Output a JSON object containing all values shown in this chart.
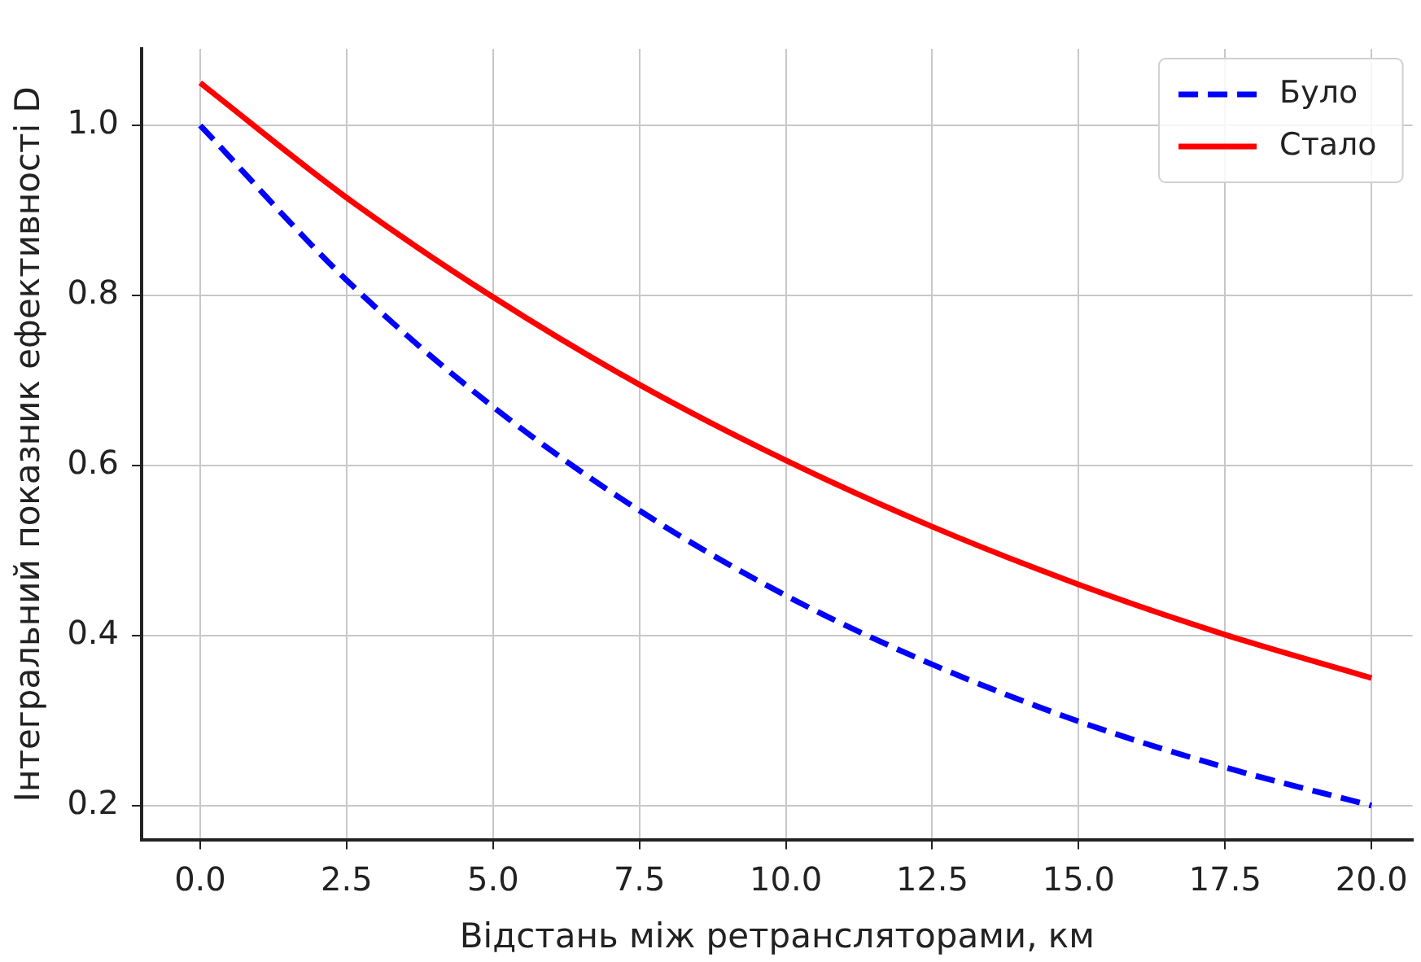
{
  "chart_data": {
    "type": "line",
    "xlabel": "Відстань між ретрансляторами, км",
    "ylabel": "Інтегральний показник ефективності D",
    "x": [
      0,
      2.5,
      5,
      7.5,
      10,
      12.5,
      15,
      17.5,
      20
    ],
    "series": [
      {
        "name": "Було",
        "color": "#0000ff",
        "line_style": "dashed",
        "values": [
          1.0,
          0.818,
          0.669,
          0.547,
          0.447,
          0.366,
          0.299,
          0.245,
          0.2
        ]
      },
      {
        "name": "Стало",
        "color": "#ff0000",
        "line_style": "solid",
        "values": [
          1.05,
          0.915,
          0.798,
          0.695,
          0.606,
          0.528,
          0.46,
          0.401,
          0.35
        ]
      }
    ],
    "xlim": [
      -1,
      20.7
    ],
    "xticks": [
      {
        "value": 0,
        "label": "0.0"
      },
      2.5,
      {
        "value": 5,
        "label": "5.0"
      },
      7.5,
      {
        "value": 10,
        "label": "10.0"
      },
      12.5,
      {
        "value": 15,
        "label": "15.0"
      },
      17.5,
      {
        "value": 20,
        "label": "20.0"
      }
    ],
    "ylim": [
      0.16,
      1.09
    ],
    "yticks": [
      0.2,
      0.4,
      0.6,
      0.8,
      {
        "value": 1,
        "label": "1.0"
      }
    ],
    "grid": true,
    "legend": "top right",
    "marker": "none"
  }
}
